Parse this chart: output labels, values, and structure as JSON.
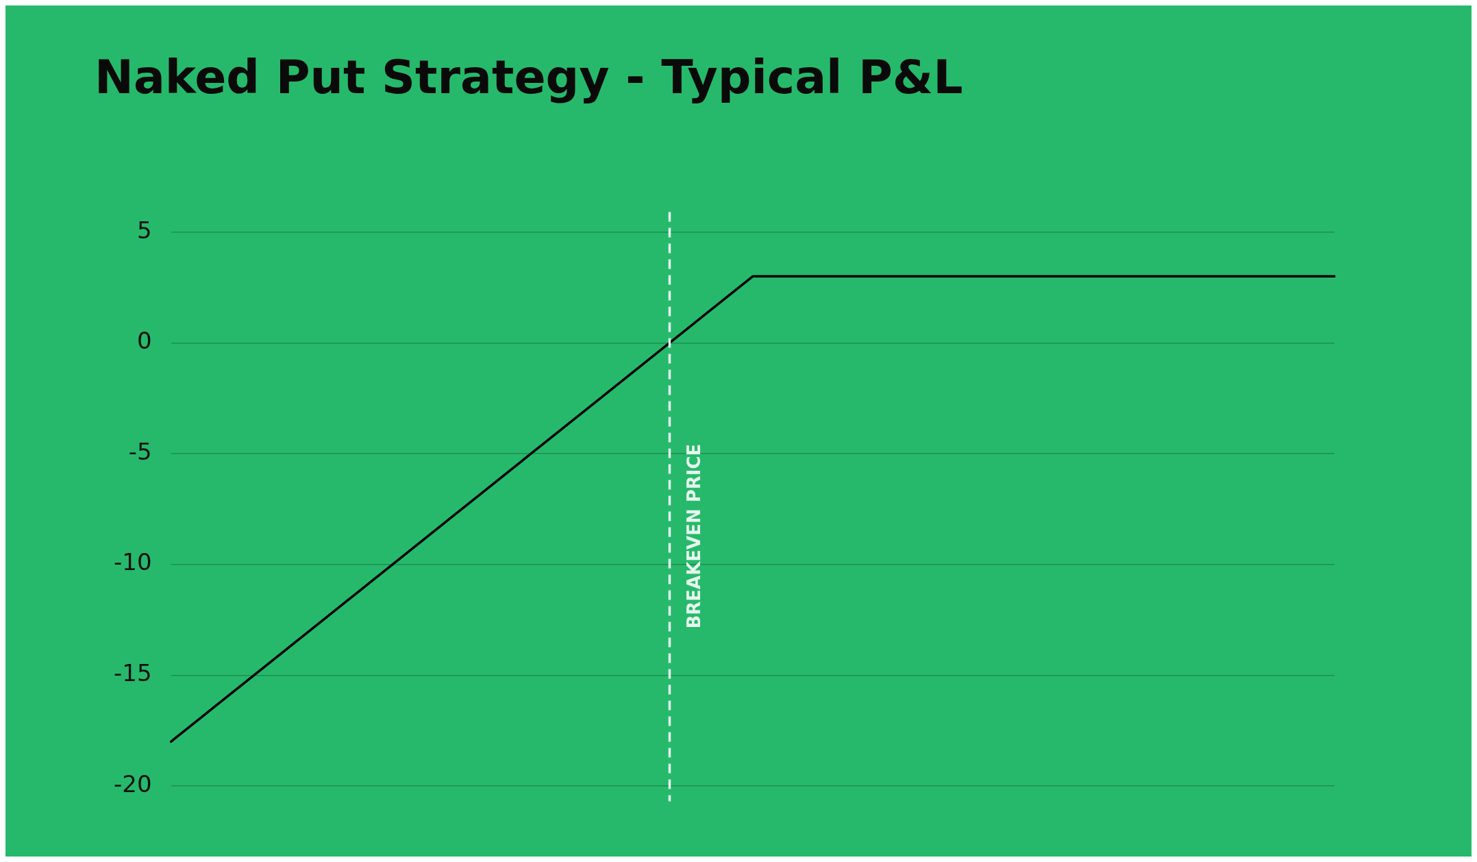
{
  "chart_data": {
    "type": "line",
    "title": "Naked Put Strategy - Typical P&L",
    "categories": [
      null,
      null,
      null,
      null,
      null,
      null,
      null,
      null,
      null,
      null,
      null,
      null,
      null,
      null,
      null
    ],
    "series": [
      {
        "color": "#000000",
        "values": [
          -18,
          -15,
          -12,
          -9,
          -6,
          -3,
          0,
          3,
          3,
          3,
          3,
          3,
          3,
          3,
          3
        ]
      }
    ],
    "ylim": [
      -20.7,
      5.9
    ],
    "yticks": [
      5,
      0,
      -5,
      -10,
      -15,
      -20
    ],
    "grid": "y",
    "legend": false,
    "marker": "none",
    "line_style": "solid",
    "annotations": [
      "BREAKEVEN PRICE"
    ]
  }
}
